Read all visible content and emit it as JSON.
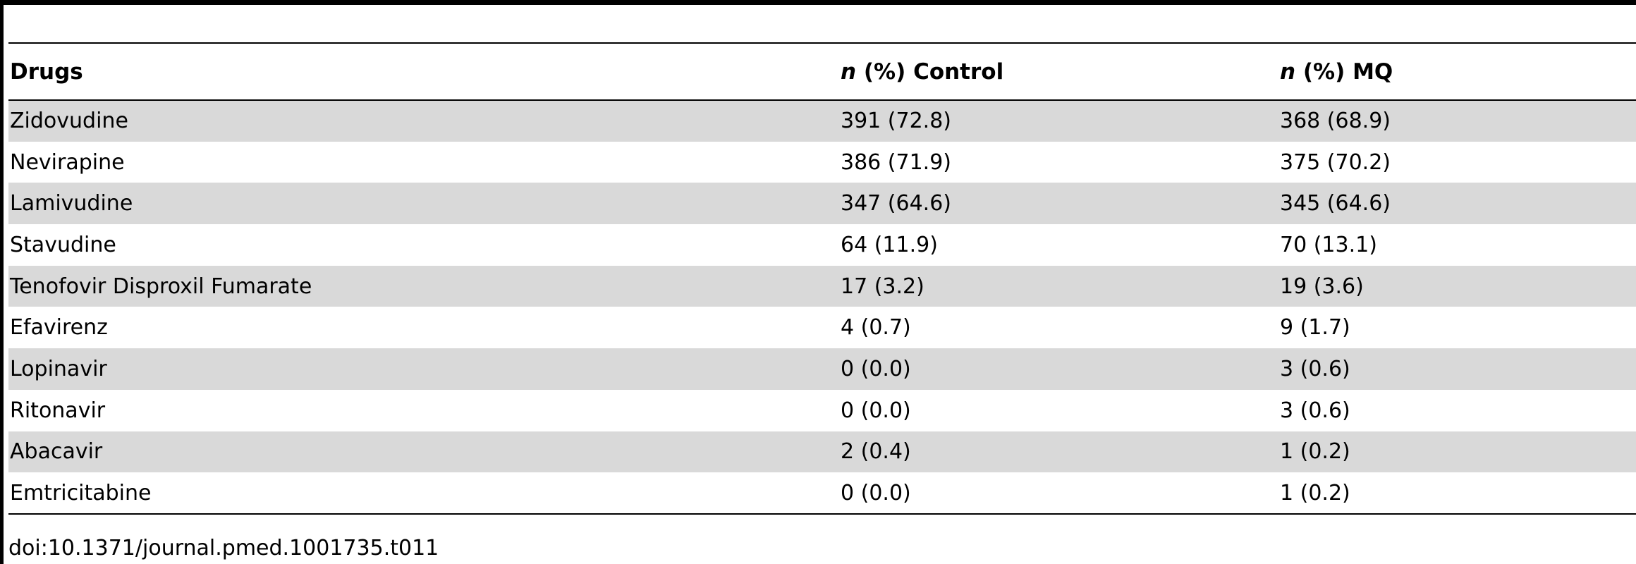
{
  "table": {
    "headers": {
      "drugs": "Drugs",
      "control_prefix": "n",
      "control_label": "(%) Control",
      "mq_prefix": "n",
      "mq_label": "(%) MQ"
    },
    "rows": [
      {
        "drug": "Zidovudine",
        "control": "391 (72.8)",
        "mq": "368 (68.9)"
      },
      {
        "drug": "Nevirapine",
        "control": "386 (71.9)",
        "mq": "375 (70.2)"
      },
      {
        "drug": "Lamivudine",
        "control": "347 (64.6)",
        "mq": "345 (64.6)"
      },
      {
        "drug": "Stavudine",
        "control": "64 (11.9)",
        "mq": "70 (13.1)"
      },
      {
        "drug": "Tenofovir Disproxil Fumarate",
        "control": "17 (3.2)",
        "mq": "19 (3.6)"
      },
      {
        "drug": "Efavirenz",
        "control": "4 (0.7)",
        "mq": "9 (1.7)"
      },
      {
        "drug": "Lopinavir",
        "control": "0 (0.0)",
        "mq": "3 (0.6)"
      },
      {
        "drug": "Ritonavir",
        "control": "0 (0.0)",
        "mq": "3 (0.6)"
      },
      {
        "drug": "Abacavir",
        "control": "2 (0.4)",
        "mq": "1 (0.2)"
      },
      {
        "drug": "Emtricitabine",
        "control": "0 (0.0)",
        "mq": "1 (0.2)"
      }
    ]
  },
  "footer": {
    "doi": "doi:10.1371/journal.pmed.1001735.t011"
  },
  "colors": {
    "stripe": "#d9d9d9",
    "rule": "#000000"
  }
}
